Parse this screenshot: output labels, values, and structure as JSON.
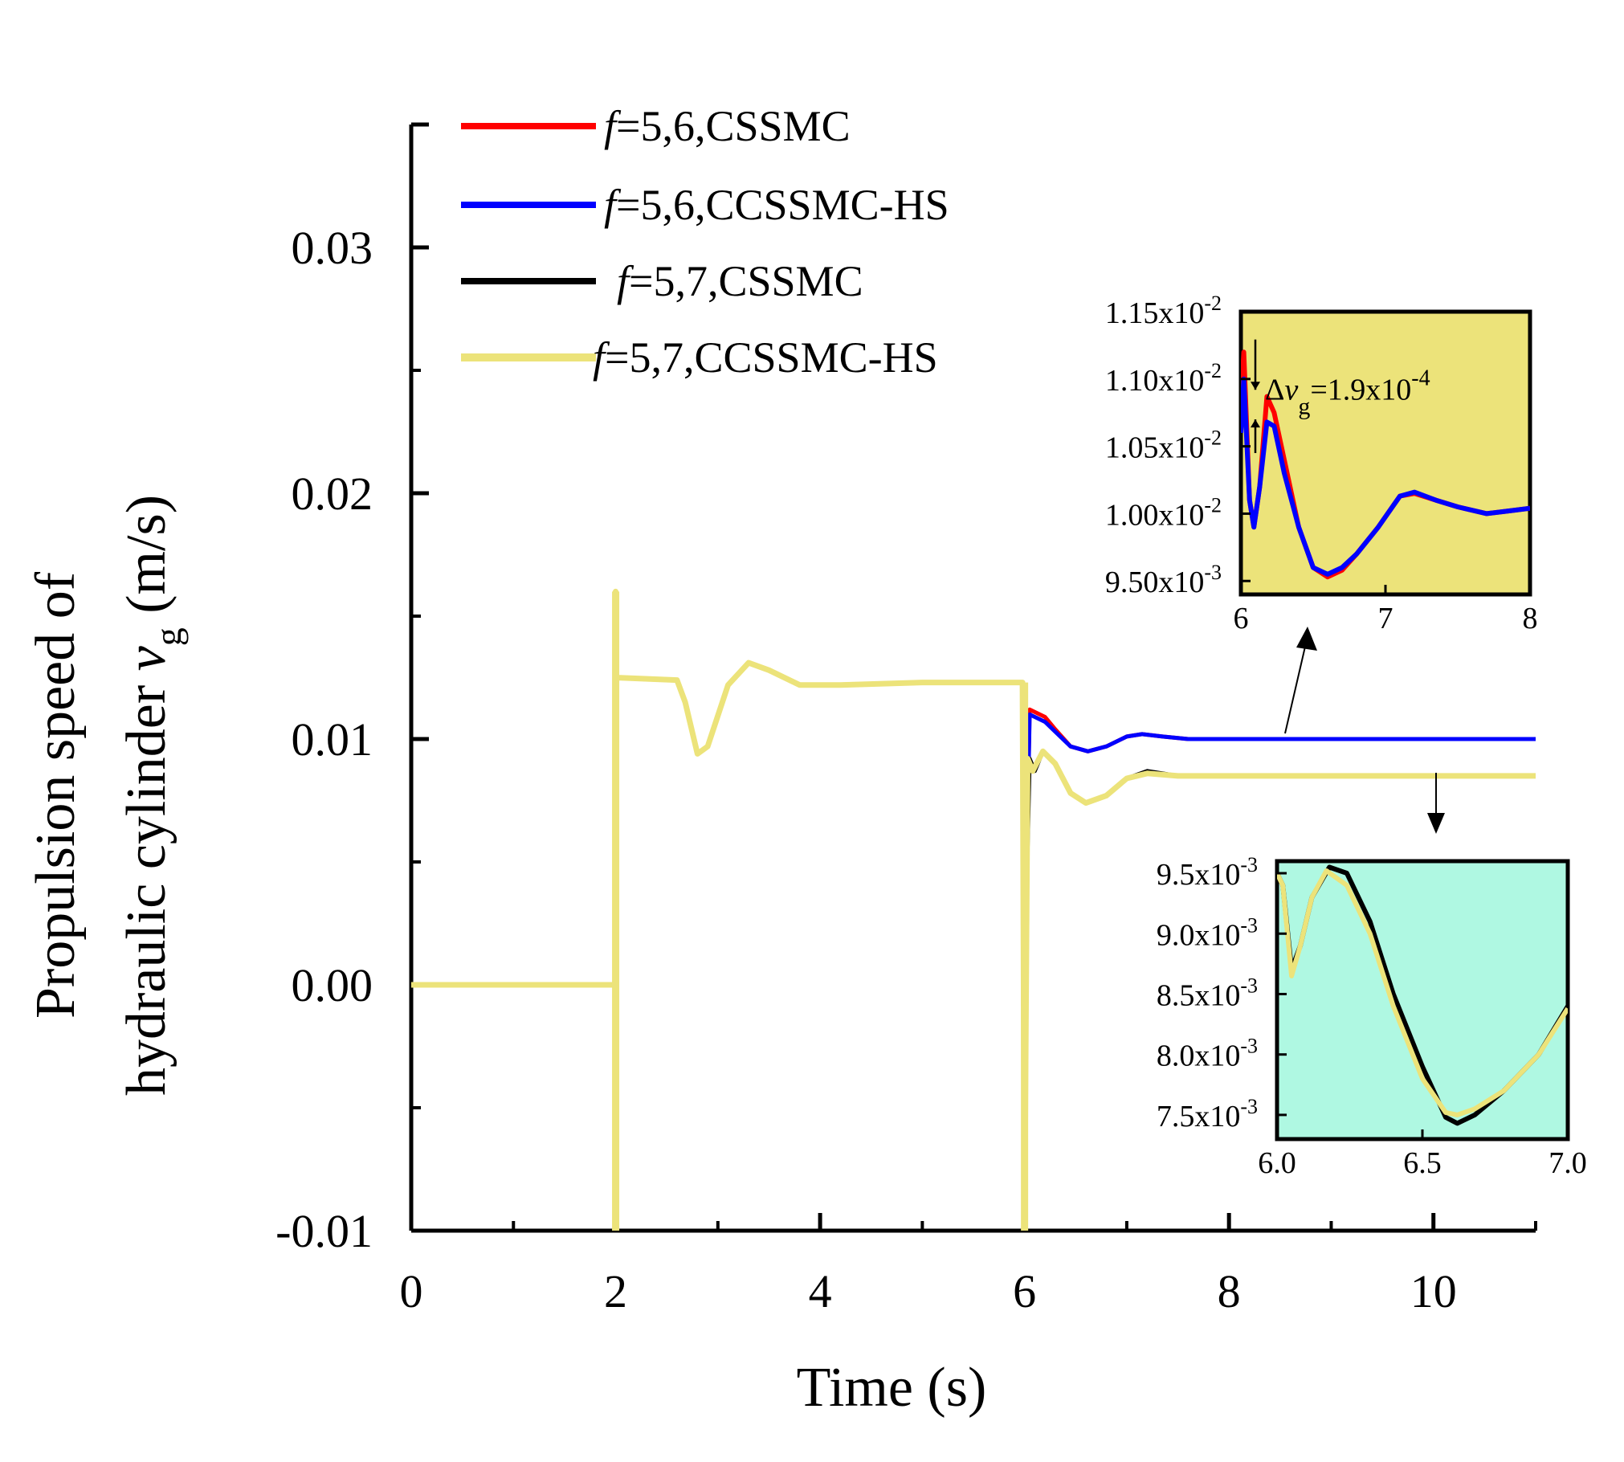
{
  "chart_data": [
    {
      "type": "line",
      "xlabel": "Time (s)",
      "ylabel": {
        "line1": "Propulsion speed of",
        "line2_prefix": "hydraulic cylinder ",
        "symbol": "v",
        "subscript": "g",
        "unit": " (m/s)"
      },
      "xlim": [
        0,
        11
      ],
      "ylim": [
        -0.01,
        0.035
      ],
      "x_ticks": [
        0,
        2,
        4,
        6,
        8,
        10
      ],
      "x_tick_labels": [
        "0",
        "2",
        "4",
        "6",
        "8",
        "10"
      ],
      "y_ticks": [
        -0.01,
        0.0,
        0.01,
        0.02,
        0.03
      ],
      "y_tick_labels": [
        "-0.01",
        "0.00",
        "0.01",
        "0.02",
        "0.03"
      ],
      "grid": false,
      "legend": {
        "position": "top-left",
        "entries": [
          {
            "italic": "f",
            "text": "=5,6,CSSMC",
            "color": "#ff0000"
          },
          {
            "italic": "f",
            "text": "=5,6,CCSSMC-HS",
            "color": "#0000ff"
          },
          {
            "italic": "f",
            "text": "=5,7,CSSMC",
            "color": "#000000"
          },
          {
            "italic": "f",
            "text": "=5,7,CCSSMC-HS",
            "color": "#ece37a"
          }
        ]
      },
      "series": [
        {
          "name": "f=5,6,CSSMC",
          "color": "#ff0000",
          "points": [
            [
              0,
              0
            ],
            [
              2,
              0
            ],
            [
              2,
              0.0125
            ],
            [
              2.6,
              0.0124
            ],
            [
              2.68,
              0.0115
            ],
            [
              2.8,
              0.0094
            ],
            [
              2.9,
              0.0097
            ],
            [
              3.1,
              0.0122
            ],
            [
              3.3,
              0.0131
            ],
            [
              3.5,
              0.0128
            ],
            [
              3.8,
              0.0122
            ],
            [
              4.2,
              0.0122
            ],
            [
              5,
              0.0123
            ],
            [
              5.98,
              0.0123
            ],
            [
              6,
              0
            ],
            [
              6.05,
              0.0112
            ],
            [
              6.2,
              0.0109
            ],
            [
              6.3,
              0.0104
            ],
            [
              6.45,
              0.0097
            ],
            [
              6.62,
              0.0095
            ],
            [
              6.8,
              0.0097
            ],
            [
              7.0,
              0.0101
            ],
            [
              7.15,
              0.0102
            ],
            [
              7.35,
              0.0101
            ],
            [
              7.6,
              0.01
            ],
            [
              8,
              0.01
            ],
            [
              11,
              0.01
            ]
          ]
        },
        {
          "name": "f=5,6,CCSSMC-HS",
          "color": "#0000ff",
          "points": [
            [
              0,
              0
            ],
            [
              2,
              0
            ],
            [
              2,
              0.0125
            ],
            [
              2.6,
              0.0124
            ],
            [
              2.68,
              0.0115
            ],
            [
              2.8,
              0.0094
            ],
            [
              2.9,
              0.0097
            ],
            [
              3.1,
              0.0122
            ],
            [
              3.3,
              0.0131
            ],
            [
              3.5,
              0.0128
            ],
            [
              3.8,
              0.0122
            ],
            [
              4.2,
              0.0122
            ],
            [
              5,
              0.0123
            ],
            [
              5.98,
              0.0123
            ],
            [
              6,
              0
            ],
            [
              6.05,
              0.011
            ],
            [
              6.2,
              0.0107
            ],
            [
              6.3,
              0.0103
            ],
            [
              6.45,
              0.0097
            ],
            [
              6.62,
              0.0095
            ],
            [
              6.8,
              0.0097
            ],
            [
              7.0,
              0.0101
            ],
            [
              7.15,
              0.0102
            ],
            [
              7.35,
              0.0101
            ],
            [
              7.6,
              0.01
            ],
            [
              8,
              0.01
            ],
            [
              11,
              0.01
            ]
          ]
        },
        {
          "name": "f=5,7,CSSMC",
          "color": "#000000",
          "points": [
            [
              0,
              0
            ],
            [
              2,
              0
            ],
            [
              2,
              0.0125
            ],
            [
              2.6,
              0.0124
            ],
            [
              2.68,
              0.0115
            ],
            [
              2.8,
              0.0094
            ],
            [
              2.9,
              0.0097
            ],
            [
              3.1,
              0.0122
            ],
            [
              3.3,
              0.0131
            ],
            [
              3.5,
              0.0128
            ],
            [
              3.8,
              0.0122
            ],
            [
              4.2,
              0.0122
            ],
            [
              5,
              0.0123
            ],
            [
              5.98,
              0.0123
            ],
            [
              6,
              0
            ],
            [
              6.05,
              0.0092
            ],
            [
              6.1,
              0.0087
            ],
            [
              6.18,
              0.0095
            ],
            [
              6.3,
              0.009
            ],
            [
              6.45,
              0.0078
            ],
            [
              6.6,
              0.0074
            ],
            [
              6.8,
              0.0077
            ],
            [
              7.0,
              0.0084
            ],
            [
              7.2,
              0.0087
            ],
            [
              7.5,
              0.0085
            ],
            [
              8,
              0.0085
            ],
            [
              11,
              0.0085
            ]
          ]
        },
        {
          "name": "f=5,7,CCSSMC-HS",
          "color": "#ece37a",
          "points": [
            [
              0,
              0
            ],
            [
              2,
              0
            ],
            [
              2,
              0.016
            ],
            [
              2,
              0.0125
            ],
            [
              2.6,
              0.0124
            ],
            [
              2.68,
              0.0115
            ],
            [
              2.8,
              0.0094
            ],
            [
              2.9,
              0.0097
            ],
            [
              3.1,
              0.0122
            ],
            [
              3.3,
              0.0131
            ],
            [
              3.5,
              0.0128
            ],
            [
              3.8,
              0.0122
            ],
            [
              4.2,
              0.0122
            ],
            [
              5,
              0.0123
            ],
            [
              5.98,
              0.0123
            ],
            [
              6,
              -0.01
            ],
            [
              6.03,
              0.0092
            ],
            [
              6.08,
              0.0087
            ],
            [
              6.18,
              0.0095
            ],
            [
              6.3,
              0.009
            ],
            [
              6.45,
              0.0078
            ],
            [
              6.6,
              0.0074
            ],
            [
              6.8,
              0.0077
            ],
            [
              7.0,
              0.0084
            ],
            [
              7.2,
              0.0086
            ],
            [
              7.5,
              0.0085
            ],
            [
              8,
              0.0085
            ],
            [
              11,
              0.0085
            ]
          ]
        }
      ],
      "spikes": [
        {
          "x": 2.0,
          "y0": -0.01,
          "y1": 0.016,
          "color": "#ece37a"
        },
        {
          "x": 6.0,
          "y0": -0.01,
          "y1": 0.0123,
          "color": "#ece37a"
        }
      ]
    },
    {
      "type": "line",
      "inset": "upper",
      "background": "#ece37a",
      "xlim": [
        6,
        8
      ],
      "ylim": [
        0.0094,
        0.0115
      ],
      "x_ticks": [
        6,
        7,
        8
      ],
      "x_tick_labels": [
        "6",
        "7",
        "8"
      ],
      "y_ticks": [
        0.0095,
        0.01,
        0.0105,
        0.011,
        0.0115
      ],
      "y_tick_labels": [
        {
          "mantissa": "9.50x10",
          "exp": "-3"
        },
        {
          "mantissa": "1.00x10",
          "exp": "-2"
        },
        {
          "mantissa": "1.05x10",
          "exp": "-2"
        },
        {
          "mantissa": "1.10x10",
          "exp": "-2"
        },
        {
          "mantissa": "1.15x10",
          "exp": "-2"
        }
      ],
      "annotation": {
        "prefix": "Δ",
        "symbol": "v",
        "subscript": "g",
        "text": "=1.9x10",
        "exp": "-4",
        "at_x": 6.1
      },
      "series": [
        {
          "name": "f=5,6,CSSMC",
          "color": "#ff0000",
          "points": [
            [
              6.0,
              0.0108
            ],
            [
              6.02,
              0.0112
            ],
            [
              6.06,
              0.0101
            ],
            [
              6.09,
              0.0099
            ],
            [
              6.13,
              0.0102
            ],
            [
              6.18,
              0.01087
            ],
            [
              6.23,
              0.01075
            ],
            [
              6.3,
              0.0104
            ],
            [
              6.4,
              0.0099
            ],
            [
              6.5,
              0.0096
            ],
            [
              6.6,
              0.00953
            ],
            [
              6.7,
              0.00958
            ],
            [
              6.8,
              0.0097
            ],
            [
              6.95,
              0.0099
            ],
            [
              7.1,
              0.01013
            ],
            [
              7.2,
              0.01015
            ],
            [
              7.35,
              0.0101
            ],
            [
              7.5,
              0.01005
            ],
            [
              7.7,
              0.01
            ],
            [
              7.85,
              0.01002
            ],
            [
              8.0,
              0.01004
            ]
          ]
        },
        {
          "name": "f=5,6,CCSSMC-HS",
          "color": "#0000ff",
          "points": [
            [
              6.0,
              0.0106
            ],
            [
              6.02,
              0.011
            ],
            [
              6.06,
              0.0101
            ],
            [
              6.09,
              0.0099
            ],
            [
              6.13,
              0.0102
            ],
            [
              6.18,
              0.01068
            ],
            [
              6.23,
              0.01065
            ],
            [
              6.3,
              0.0103
            ],
            [
              6.4,
              0.0099
            ],
            [
              6.5,
              0.0096
            ],
            [
              6.6,
              0.00955
            ],
            [
              6.7,
              0.0096
            ],
            [
              6.8,
              0.0097
            ],
            [
              6.95,
              0.0099
            ],
            [
              7.1,
              0.01013
            ],
            [
              7.2,
              0.01016
            ],
            [
              7.35,
              0.0101
            ],
            [
              7.5,
              0.01005
            ],
            [
              7.7,
              0.01
            ],
            [
              7.85,
              0.01002
            ],
            [
              8.0,
              0.01004
            ]
          ]
        }
      ]
    },
    {
      "type": "line",
      "inset": "lower",
      "background": "#aff8e2",
      "xlim": [
        6.0,
        7.0
      ],
      "ylim": [
        0.0073,
        0.0096
      ],
      "x_ticks": [
        6.0,
        6.5,
        7.0
      ],
      "x_tick_labels": [
        "6.0",
        "6.5",
        "7.0"
      ],
      "y_ticks": [
        0.0075,
        0.008,
        0.0085,
        0.009,
        0.0095
      ],
      "y_tick_labels": [
        {
          "mantissa": "7.5x10",
          "exp": "-3"
        },
        {
          "mantissa": "8.0x10",
          "exp": "-3"
        },
        {
          "mantissa": "8.5x10",
          "exp": "-3"
        },
        {
          "mantissa": "9.0x10",
          "exp": "-3"
        },
        {
          "mantissa": "9.5x10",
          "exp": "-3"
        }
      ],
      "series": [
        {
          "name": "f=5,7,CSSMC",
          "color": "#000000",
          "points": [
            [
              6.0,
              0.0095
            ],
            [
              6.02,
              0.0094
            ],
            [
              6.05,
              0.0087
            ],
            [
              6.08,
              0.0089
            ],
            [
              6.12,
              0.0093
            ],
            [
              6.18,
              0.00955
            ],
            [
              6.24,
              0.0095
            ],
            [
              6.32,
              0.0091
            ],
            [
              6.4,
              0.0085
            ],
            [
              6.5,
              0.0079
            ],
            [
              6.58,
              0.00748
            ],
            [
              6.62,
              0.00743
            ],
            [
              6.68,
              0.0075
            ],
            [
              6.78,
              0.0077
            ],
            [
              6.9,
              0.008
            ],
            [
              7.0,
              0.0084
            ]
          ]
        },
        {
          "name": "f=5,7,CCSSMC-HS",
          "color": "#ece37a",
          "points": [
            [
              6.0,
              0.0095
            ],
            [
              6.02,
              0.0094
            ],
            [
              6.05,
              0.00865
            ],
            [
              6.08,
              0.0089
            ],
            [
              6.12,
              0.0093
            ],
            [
              6.17,
              0.00952
            ],
            [
              6.24,
              0.0094
            ],
            [
              6.32,
              0.009
            ],
            [
              6.4,
              0.0084
            ],
            [
              6.5,
              0.0078
            ],
            [
              6.58,
              0.00752
            ],
            [
              6.62,
              0.0075
            ],
            [
              6.68,
              0.00755
            ],
            [
              6.78,
              0.0077
            ],
            [
              6.9,
              0.008
            ],
            [
              7.0,
              0.00838
            ]
          ]
        }
      ]
    }
  ]
}
